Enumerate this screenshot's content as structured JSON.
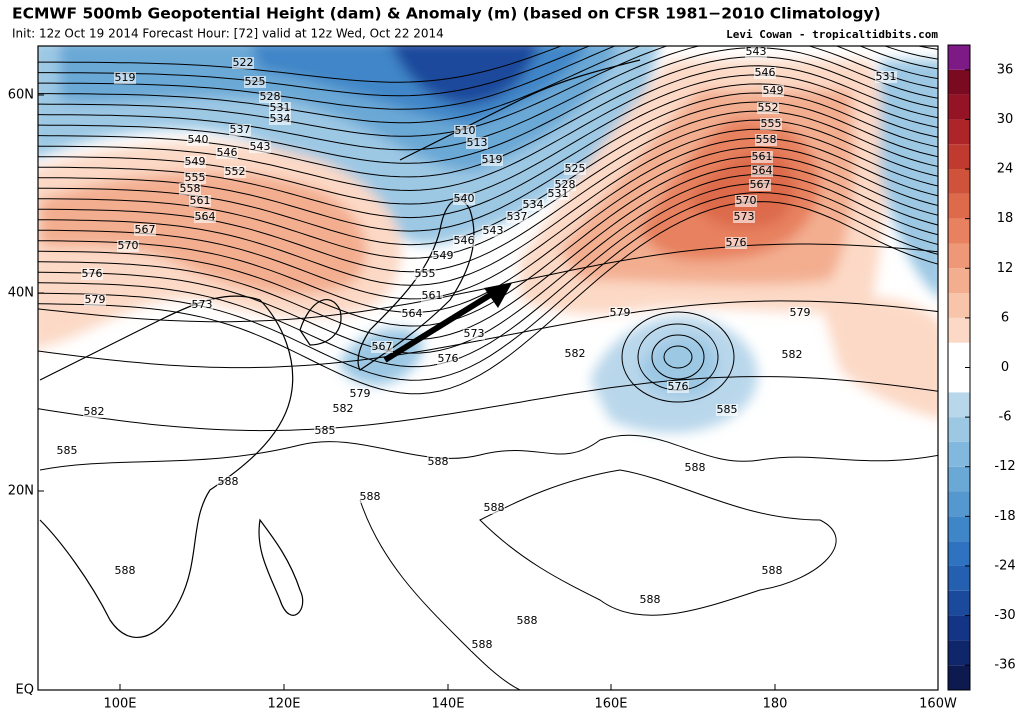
{
  "header": {
    "title": "ECMWF 500mb Geopotential Height (dam) & Anomaly (m) (based on CFSR 1981−2010 Climatology)",
    "subtitle": "Init: 12z Oct 19 2014 Forecast Hour: [72] valid at 12z Wed, Oct 22 2014",
    "credit": "Levi Cowan - tropicaltidbits.com"
  },
  "map": {
    "lat_labels": [
      "60N",
      "40N",
      "20N",
      "EQ"
    ],
    "lon_labels": [
      "100E",
      "120E",
      "140E",
      "160E",
      "180",
      "160W"
    ],
    "contour_labels": [
      "519",
      "522",
      "525",
      "528",
      "531",
      "534",
      "537",
      "543",
      "540",
      "546",
      "549",
      "552",
      "555",
      "558",
      "561",
      "564",
      "567",
      "570",
      "576",
      "579",
      "573",
      "510",
      "513",
      "519",
      "525",
      "528",
      "531",
      "534",
      "537",
      "540",
      "543",
      "546",
      "549",
      "555",
      "561",
      "564",
      "567",
      "573",
      "576",
      "579",
      "582",
      "585",
      "582",
      "585",
      "588",
      "588",
      "588",
      "588",
      "588",
      "588",
      "588",
      "588",
      "588",
      "588",
      "543",
      "546",
      "549",
      "552",
      "555",
      "558",
      "561",
      "564",
      "567",
      "570",
      "573",
      "576",
      "579",
      "579",
      "582",
      "582",
      "576",
      "585",
      "531"
    ]
  },
  "colorbar": {
    "range": [
      -39,
      39
    ],
    "ticks": [
      36,
      30,
      24,
      18,
      12,
      6,
      0,
      -6,
      -12,
      -18,
      -24,
      -30,
      -36
    ],
    "colors": [
      "#0d1a4f",
      "#10266b",
      "#143585",
      "#1b4a9c",
      "#245fb0",
      "#2f72c0",
      "#3f86c8",
      "#5597cf",
      "#6aa8d6",
      "#82b8dd",
      "#9cc8e4",
      "#b9d7eb",
      "#ffffff",
      "#ffffff",
      "#fcd9c6",
      "#f8c4aa",
      "#f3ae90",
      "#ee9877",
      "#e7815f",
      "#dc6a4b",
      "#cf523b",
      "#c03a30",
      "#ad2429",
      "#941324",
      "#7a0a1f",
      "#7d1a86"
    ]
  }
}
